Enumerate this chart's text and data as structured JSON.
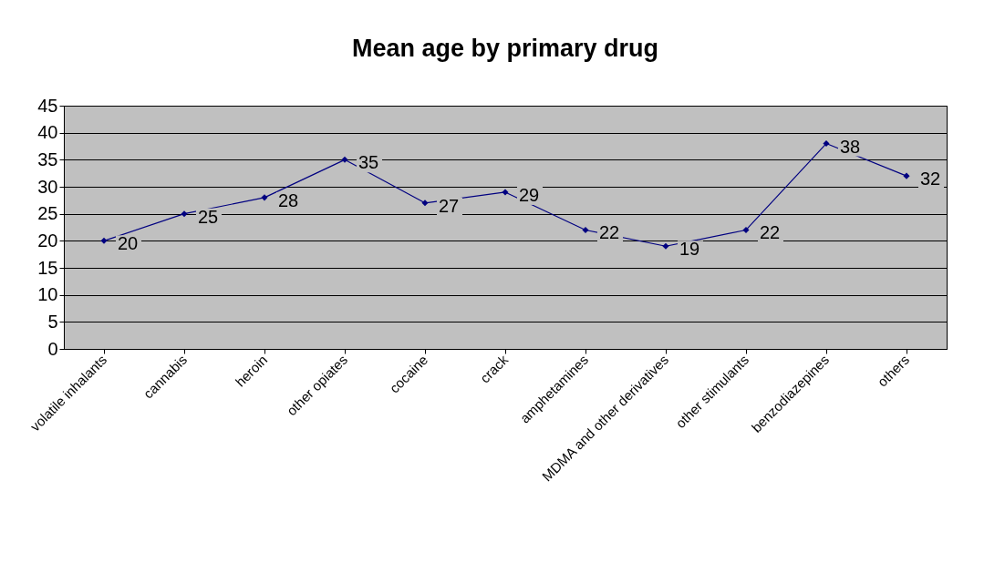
{
  "chart_data": {
    "type": "line",
    "title": "Mean age by primary drug",
    "categories": [
      "volatile inhalants",
      "cannabis",
      "heroin",
      "other opiates",
      "cocaine",
      "crack",
      "amphetamines",
      "MDMA and other derivatives",
      "other stimulants",
      "benzodiazepines",
      "others"
    ],
    "series": [
      {
        "color": "#000080",
        "values": [
          20,
          25,
          28,
          35,
          27,
          29,
          22,
          19,
          22,
          38,
          32
        ]
      }
    ],
    "ylim": [
      0,
      45
    ],
    "yticks": [
      0,
      5,
      10,
      15,
      20,
      25,
      30,
      35,
      40,
      45
    ],
    "grid": "y",
    "marker": "diamond",
    "line_style": "solid",
    "data_labels": true
  }
}
